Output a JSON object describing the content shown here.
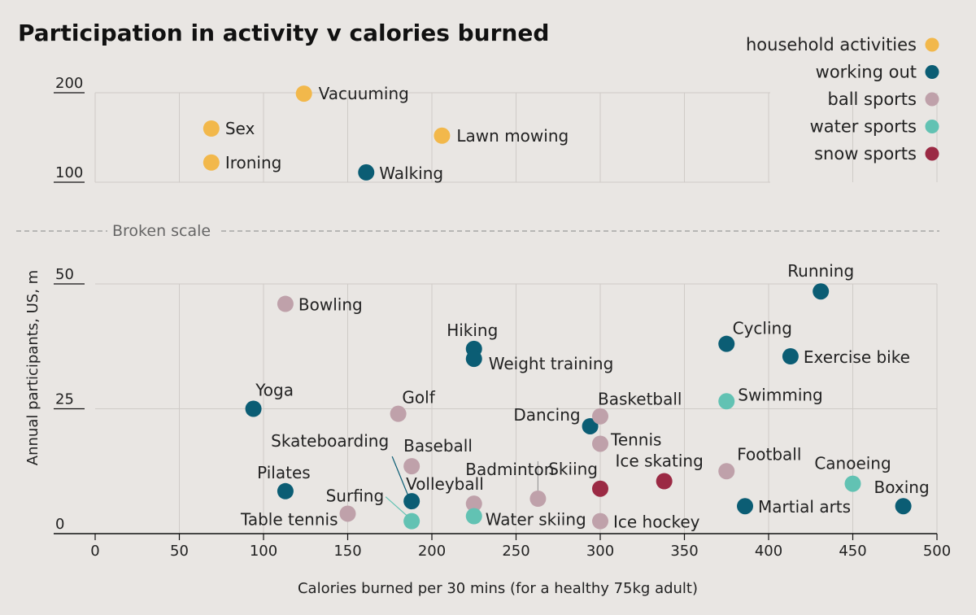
{
  "chart_data": {
    "type": "scatter",
    "title": "Participation in activity v calories burned",
    "xlabel": "Calories burned per 30 mins (for a healthy 75kg adult)",
    "ylabel": "Annual participants, US, m",
    "xlim": [
      0,
      500
    ],
    "x_ticks": [
      "0",
      "50",
      "100",
      "150",
      "200",
      "250",
      "300",
      "350",
      "400",
      "450",
      "500"
    ],
    "y_panels": {
      "upper": {
        "range": [
          100,
          200
        ],
        "ticks": [
          "200",
          "100"
        ]
      },
      "lower": {
        "range": [
          0,
          50
        ],
        "ticks": [
          "50",
          "25",
          "0"
        ]
      }
    },
    "broken_scale_label": "Broken scale",
    "grid": true,
    "legend_position": "top-right",
    "series": [
      {
        "name": "household activities",
        "color": "#f2b84b",
        "points": [
          {
            "label": "Vacuuming",
            "x": 124,
            "y": 199
          },
          {
            "label": "Sex",
            "x": 69,
            "y": 160
          },
          {
            "label": "Ironing",
            "x": 69,
            "y": 122
          },
          {
            "label": "Lawn mowing",
            "x": 206,
            "y": 152
          }
        ]
      },
      {
        "name": "working out",
        "color": "#0b5d74",
        "points": [
          {
            "label": "Walking",
            "x": 161,
            "y": 111
          },
          {
            "label": "Running",
            "x": 431,
            "y": 48.5
          },
          {
            "label": "Cycling",
            "x": 375,
            "y": 38
          },
          {
            "label": "Exercise bike",
            "x": 413,
            "y": 35.5
          },
          {
            "label": "Hiking",
            "x": 225,
            "y": 37
          },
          {
            "label": "Weight training",
            "x": 225,
            "y": 35
          },
          {
            "label": "Yoga",
            "x": 94,
            "y": 25
          },
          {
            "label": "Dancing",
            "x": 294,
            "y": 21.5
          },
          {
            "label": "Pilates",
            "x": 113,
            "y": 8.5
          },
          {
            "label": "Skateboarding",
            "x": 188,
            "y": 6.5
          },
          {
            "label": "Martial arts",
            "x": 386,
            "y": 5.5
          },
          {
            "label": "Boxing",
            "x": 480,
            "y": 5.5
          }
        ]
      },
      {
        "name": "ball sports",
        "color": "#bfa1aa",
        "points": [
          {
            "label": "Bowling",
            "x": 113,
            "y": 46
          },
          {
            "label": "Golf",
            "x": 180,
            "y": 24
          },
          {
            "label": "Basketball",
            "x": 300,
            "y": 23.5
          },
          {
            "label": "Tennis",
            "x": 300,
            "y": 18
          },
          {
            "label": "Baseball",
            "x": 188,
            "y": 13.5
          },
          {
            "label": "Badminton",
            "x": 263,
            "y": 7
          },
          {
            "label": "Volleyball",
            "x": 225,
            "y": 6
          },
          {
            "label": "Table tennis",
            "x": 150,
            "y": 4
          },
          {
            "label": "Ice hockey",
            "x": 300,
            "y": 2.5
          },
          {
            "label": "Football",
            "x": 375,
            "y": 12.5
          }
        ]
      },
      {
        "name": "water sports",
        "color": "#62c2b3",
        "points": [
          {
            "label": "Swimming",
            "x": 375,
            "y": 26.5
          },
          {
            "label": "Canoeing",
            "x": 450,
            "y": 10
          },
          {
            "label": "Water skiing",
            "x": 225,
            "y": 3.5
          },
          {
            "label": "Surfing",
            "x": 188,
            "y": 2.5
          }
        ]
      },
      {
        "name": "snow sports",
        "color": "#9b2a44",
        "points": [
          {
            "label": "Skiing",
            "x": 300,
            "y": 9
          },
          {
            "label": "Ice skating",
            "x": 338,
            "y": 10.5
          }
        ]
      }
    ]
  }
}
